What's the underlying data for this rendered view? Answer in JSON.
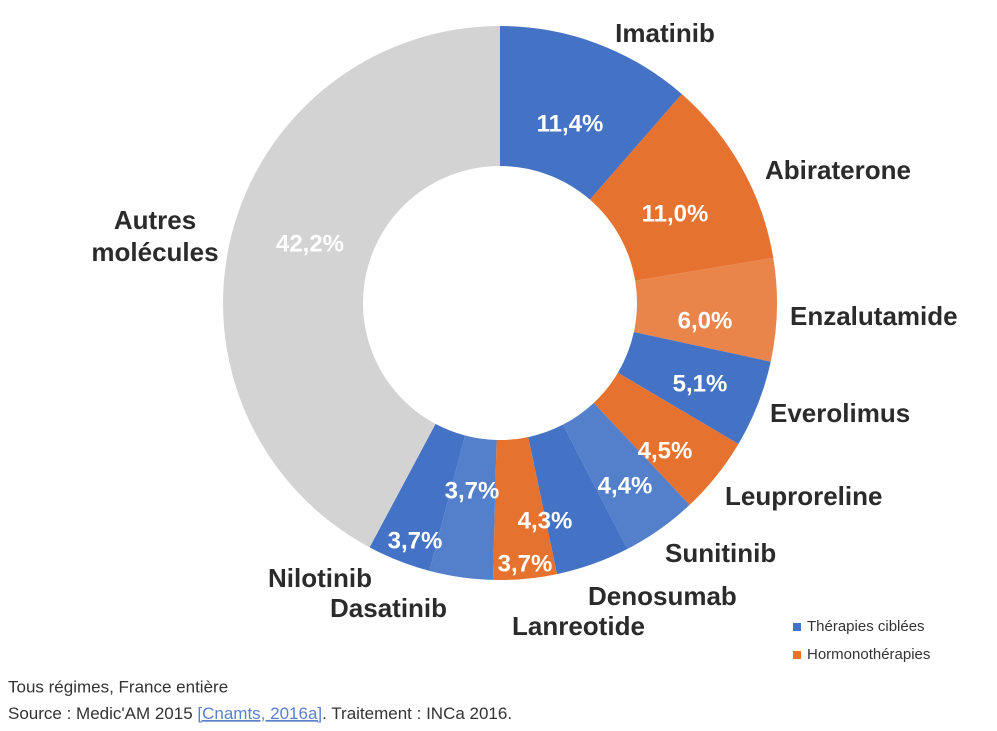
{
  "chart_data": {
    "type": "donut",
    "categories": [
      "Imatinib",
      "Abiraterone",
      "Enzalutamide",
      "Everolimus",
      "Leuproreline",
      "Sunitinib",
      "Denosumab",
      "Lanreotide",
      "Dasatinib",
      "Nilotinib",
      "Autres molécules"
    ],
    "values": [
      11.4,
      11.0,
      6.0,
      5.1,
      4.5,
      4.4,
      4.3,
      3.7,
      3.7,
      3.7,
      42.2
    ],
    "value_labels": [
      "11,4%",
      "11,0%",
      "6,0%",
      "5,1%",
      "4,5%",
      "4,4%",
      "4,3%",
      "3,7%",
      "3,7%",
      "3,7%",
      "42,2%"
    ],
    "colors": [
      "#4472c4",
      "#e6722f",
      "#e9844a",
      "#4472c4",
      "#e6722f",
      "#5480cb",
      "#4472c4",
      "#e6722f",
      "#5480cb",
      "#4472c4",
      "#d3d3d3"
    ],
    "legend": [
      {
        "name": "Thérapies ciblées",
        "color": "#4472c4"
      },
      {
        "name": "Hormonothérapies",
        "color": "#e6722f"
      }
    ]
  },
  "footnote": {
    "line1": "Tous régimes, France entière",
    "source_prefix": "Source : Medic'AM 2015 ",
    "source_link": "[Cnamts, 2016a]",
    "source_suffix": ". Traitement : INCa 2016."
  }
}
